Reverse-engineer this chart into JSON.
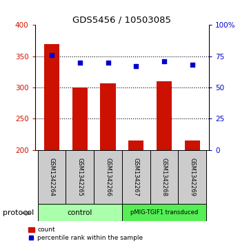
{
  "title": "GDS5456 / 10503085",
  "samples": [
    "GSM1342264",
    "GSM1342265",
    "GSM1342266",
    "GSM1342267",
    "GSM1342268",
    "GSM1342269"
  ],
  "counts": [
    370,
    300,
    307,
    215,
    310,
    215
  ],
  "percentile_ranks": [
    76,
    70,
    70,
    67,
    71,
    68
  ],
  "ylim_left": [
    200,
    400
  ],
  "ylim_right": [
    0,
    100
  ],
  "yticks_left": [
    200,
    250,
    300,
    350,
    400
  ],
  "yticks_right": [
    0,
    25,
    50,
    75,
    100
  ],
  "bar_color": "#CC1100",
  "dot_color": "#0000CC",
  "bar_bottom": 200,
  "protocol_label": "protocol",
  "legend_count_label": "count",
  "legend_pct_label": "percentile rank within the sample",
  "xlabel_color": "#CC1100",
  "ylabel_right_color": "#0000CC",
  "grid_color": "#000000",
  "label_area_color": "#cccccc",
  "group_area_color_control": "#aaffaa",
  "group_area_color_pmig": "#55ee55",
  "control_label": "control",
  "pmig_label": "pMIG-TGIF1 transduced"
}
